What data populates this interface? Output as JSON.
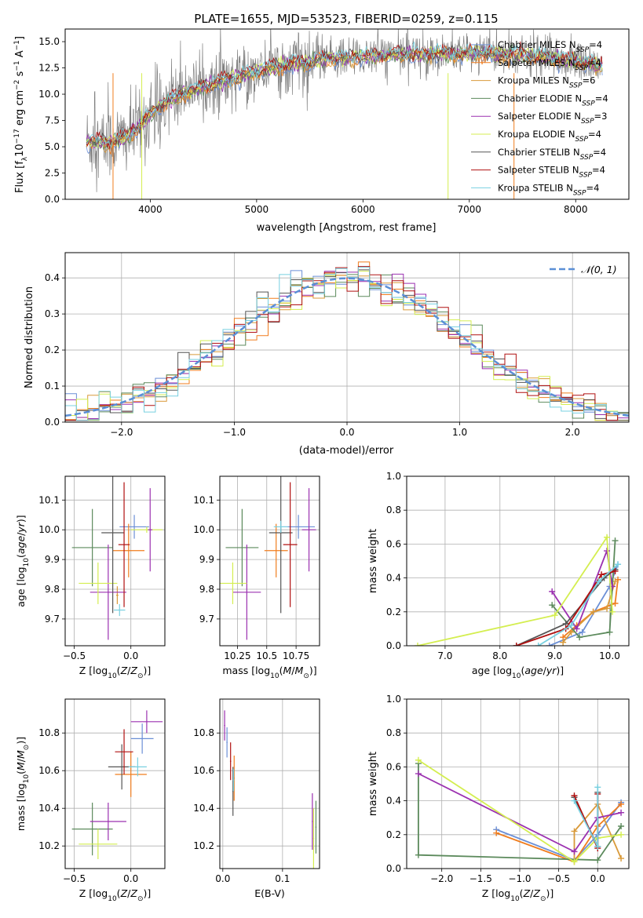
{
  "figure_title": "PLATE=1655, MJD=53523, FIBERID=0259, z=0.115",
  "colors": {
    "Chabrier MILES": "#6b8fd6",
    "Salpeter MILES": "#f07d1e",
    "Kroupa MILES": "#d99a3a",
    "Chabrier ELODIE": "#5c8a5c",
    "Salpeter ELODIE": "#9b30b0",
    "Kroupa ELODIE": "#d4ee50",
    "Chabrier STELIB": "#555555",
    "Salpeter STELIB": "#b01010",
    "Kroupa STELIB": "#78d0e0",
    "data": "#808080",
    "normal": "#5b8fd6"
  },
  "chart_data": [
    {
      "id": "spectrum",
      "type": "line",
      "title": "PLATE=1655, MJD=53523, FIBERID=0259, z=0.115",
      "xlabel": "wavelength [Angstrom, rest frame]",
      "ylabel_parts": [
        "Flux [f",
        "λ",
        "10",
        "−17",
        " erg cm",
        "−2",
        " s",
        "−1",
        " A",
        "−1",
        "]"
      ],
      "xlim": [
        3200,
        8500
      ],
      "ylim": [
        0,
        16.2
      ],
      "xticks": [
        4000,
        5000,
        6000,
        7000,
        8000
      ],
      "yticks": [
        0.0,
        2.5,
        5.0,
        7.5,
        10.0,
        12.5,
        15.0
      ],
      "grid": false,
      "legend_position": "right",
      "legend": [
        {
          "name": "Chabrier MILES",
          "n": "4"
        },
        {
          "name": "Salpeter MILES",
          "n": "4"
        },
        {
          "name": "Kroupa MILES",
          "n": "6"
        },
        {
          "name": "Chabrier ELODIE",
          "n": "4"
        },
        {
          "name": "Salpeter ELODIE",
          "n": "3"
        },
        {
          "name": "Kroupa ELODIE",
          "n": "4"
        },
        {
          "name": "Chabrier STELIB",
          "n": "4"
        },
        {
          "name": "Salpeter STELIB",
          "n": "4"
        },
        {
          "name": "Kroupa STELIB",
          "n": "4"
        }
      ],
      "legend_n_label": "N",
      "legend_n_sub": "SSP",
      "continuum": {
        "x": [
          3400,
          3600,
          3800,
          3950,
          4100,
          4300,
          4600,
          5000,
          5300,
          5600,
          6000,
          6500,
          7000,
          7500,
          8000,
          8250
        ],
        "y": [
          5.5,
          5.3,
          6.0,
          7.5,
          9.0,
          10.0,
          11.0,
          12.2,
          12.8,
          13.3,
          13.6,
          13.8,
          13.9,
          13.7,
          13.2,
          12.6
        ]
      }
    },
    {
      "id": "residuals",
      "type": "histogram",
      "xlabel": "(data-model)/error",
      "ylabel": "Normed distribution",
      "xlim": [
        -2.5,
        2.5
      ],
      "ylim": [
        0,
        0.47
      ],
      "xticks": [
        -2,
        -1,
        0,
        1,
        2
      ],
      "yticks": [
        0.0,
        0.1,
        0.2,
        0.3,
        0.4
      ],
      "grid": true,
      "legend": [
        {
          "name": "𝒩(0, 1)"
        }
      ],
      "legend_position": "top-right",
      "bin_width": 0.1,
      "curve": "normal pdf, mean 0, sigma 1"
    },
    {
      "id": "age-vs-Z",
      "type": "errorbar",
      "xlabel": "Z [log10(Z/Z⊙)]",
      "ylabel": "age  [log10(age/yr)]",
      "xlim": [
        -0.58,
        0.3
      ],
      "ylim": [
        9.61,
        10.18
      ],
      "xticks": [
        -0.5,
        0.0
      ],
      "yticks": [
        9.7,
        9.8,
        9.9,
        10.0,
        10.1
      ],
      "grid": true,
      "points": [
        {
          "model": "Chabrier MILES",
          "x": 0.03,
          "xerr": 0.13,
          "y": 10.01,
          "yerr": 0.04
        },
        {
          "model": "Salpeter MILES",
          "x": -0.02,
          "xerr": 0.14,
          "y": 9.93,
          "yerr": 0.09
        },
        {
          "model": "Kroupa MILES",
          "x": -0.12,
          "xerr": 0.01,
          "y": 9.78,
          "yerr": 0.03
        },
        {
          "model": "Chabrier ELODIE",
          "x": -0.34,
          "xerr": 0.18,
          "y": 9.94,
          "yerr": 0.13
        },
        {
          "model": "Salpeter ELODIE",
          "x": -0.2,
          "xerr": 0.16,
          "y": 9.79,
          "yerr": 0.16
        },
        {
          "model": "Kroupa ELODIE",
          "x": -0.29,
          "xerr": 0.17,
          "y": 9.82,
          "yerr": 0.07
        },
        {
          "model": "Chabrier STELIB",
          "x": -0.16,
          "xerr": 0.1,
          "y": 9.99,
          "yerr": 0.27
        },
        {
          "model": "Salpeter STELIB",
          "x": -0.06,
          "xerr": 0.05,
          "y": 9.95,
          "yerr": 0.21
        },
        {
          "model": "Kroupa STELIB",
          "x": -0.1,
          "xerr": 0.05,
          "y": 9.73,
          "yerr": 0.02
        },
        {
          "model": "Kroupa ELODIE",
          "x": 0.14,
          "xerr": 0.14,
          "y": 10.0,
          "yerr": 0.01
        },
        {
          "model": "Salpeter ELODIE",
          "x": 0.17,
          "xerr": 0.02,
          "y": 10.0,
          "yerr": 0.14
        }
      ]
    },
    {
      "id": "age-vs-mass",
      "type": "errorbar",
      "xlabel": "mass [log10(M/M⊙)]",
      "ylabel": "",
      "xlim": [
        10.1,
        10.95
      ],
      "ylim": [
        9.61,
        10.18
      ],
      "xticks": [
        10.25,
        10.5,
        10.75
      ],
      "yticks": [
        9.7,
        9.8,
        9.9,
        10.0,
        10.1
      ],
      "grid": true,
      "points": [
        {
          "model": "Chabrier MILES",
          "x": 10.77,
          "xerr": 0.14,
          "y": 10.01,
          "yerr": 0.04
        },
        {
          "model": "Salpeter MILES",
          "x": 10.58,
          "xerr": 0.1,
          "y": 9.93,
          "yerr": 0.09
        },
        {
          "model": "Chabrier ELODIE",
          "x": 10.29,
          "xerr": 0.14,
          "y": 9.94,
          "yerr": 0.13
        },
        {
          "model": "Salpeter ELODIE",
          "x": 10.33,
          "xerr": 0.12,
          "y": 9.79,
          "yerr": 0.16
        },
        {
          "model": "Kroupa ELODIE",
          "x": 10.21,
          "xerr": 0.12,
          "y": 9.82,
          "yerr": 0.07
        },
        {
          "model": "Chabrier STELIB",
          "x": 10.62,
          "xerr": 0.1,
          "y": 9.99,
          "yerr": 0.27
        },
        {
          "model": "Salpeter STELIB",
          "x": 10.7,
          "xerr": 0.06,
          "y": 9.95,
          "yerr": 0.21
        },
        {
          "model": "Kroupa STELIB",
          "x": 10.62,
          "xerr": 0.06,
          "y": 10.01,
          "yerr": 0.02
        },
        {
          "model": "Salpeter ELODIE",
          "x": 10.86,
          "xerr": 0.06,
          "y": 10.0,
          "yerr": 0.14
        }
      ]
    },
    {
      "id": "weight-vs-age",
      "type": "line",
      "xlabel": "age  [log10(age/yr)]",
      "ylabel": "mass weight",
      "xlim": [
        6.3,
        10.35
      ],
      "ylim": [
        0,
        1.0
      ],
      "xticks": [
        7,
        8,
        9,
        10
      ],
      "yticks": [
        0.0,
        0.2,
        0.4,
        0.6,
        0.8,
        1.0
      ],
      "grid": true,
      "series": [
        {
          "model": "Chabrier MILES",
          "x": [
            8.9,
            9.5,
            10.0,
            10.15
          ],
          "y": [
            0.0,
            0.08,
            0.35,
            0.48
          ]
        },
        {
          "model": "Salpeter MILES",
          "x": [
            9.15,
            9.4,
            9.7,
            10.1,
            10.15
          ],
          "y": [
            0.05,
            0.12,
            0.2,
            0.25,
            0.39
          ]
        },
        {
          "model": "Kroupa MILES",
          "x": [
            9.15,
            9.3,
            9.7,
            9.95,
            10.1
          ],
          "y": [
            0.02,
            0.08,
            0.2,
            0.22,
            0.38
          ]
        },
        {
          "model": "Chabrier ELODIE",
          "x": [
            8.95,
            9.45,
            10.0,
            10.1
          ],
          "y": [
            0.24,
            0.05,
            0.08,
            0.62
          ]
        },
        {
          "model": "Salpeter ELODIE",
          "x": [
            8.95,
            9.4,
            9.95,
            10.05
          ],
          "y": [
            0.32,
            0.1,
            0.56,
            0.35
          ]
        },
        {
          "model": "Kroupa ELODIE",
          "x": [
            6.5,
            9.0,
            9.95,
            10.05
          ],
          "y": [
            0.0,
            0.18,
            0.64,
            0.2
          ]
        },
        {
          "model": "Chabrier STELIB",
          "x": [
            8.3,
            9.2,
            9.9,
            10.1
          ],
          "y": [
            0.0,
            0.13,
            0.4,
            0.45
          ]
        },
        {
          "model": "Salpeter STELIB",
          "x": [
            8.3,
            9.2,
            9.85,
            10.1
          ],
          "y": [
            0.0,
            0.1,
            0.42,
            0.44
          ]
        },
        {
          "model": "Kroupa STELIB",
          "x": [
            8.7,
            9.3,
            9.8,
            10.15
          ],
          "y": [
            0.0,
            0.12,
            0.38,
            0.48
          ]
        }
      ]
    },
    {
      "id": "mass-vs-Z",
      "type": "errorbar",
      "xlabel": "Z [log10(Z/Z⊙)]",
      "ylabel": "mass [log10(M/M⊙)]",
      "xlim": [
        -0.58,
        0.3
      ],
      "ylim": [
        10.08,
        10.98
      ],
      "xticks": [
        -0.5,
        0.0
      ],
      "yticks": [
        10.2,
        10.4,
        10.6,
        10.8
      ],
      "grid": true,
      "points": [
        {
          "model": "Chabrier MILES",
          "x": 0.1,
          "xerr": 0.1,
          "y": 10.77,
          "yerr": 0.08
        },
        {
          "model": "Salpeter MILES",
          "x": 0.0,
          "xerr": 0.14,
          "y": 10.58,
          "yerr": 0.12
        },
        {
          "model": "Chabrier ELODIE",
          "x": -0.34,
          "xerr": 0.18,
          "y": 10.29,
          "yerr": 0.14
        },
        {
          "model": "Salpeter ELODIE",
          "x": -0.2,
          "xerr": 0.16,
          "y": 10.33,
          "yerr": 0.1
        },
        {
          "model": "Kroupa ELODIE",
          "x": -0.29,
          "xerr": 0.17,
          "y": 10.21,
          "yerr": 0.08
        },
        {
          "model": "Chabrier STELIB",
          "x": -0.08,
          "xerr": 0.12,
          "y": 10.62,
          "yerr": 0.12
        },
        {
          "model": "Salpeter STELIB",
          "x": -0.06,
          "xerr": 0.08,
          "y": 10.7,
          "yerr": 0.12
        },
        {
          "model": "Kroupa STELIB",
          "x": 0.06,
          "xerr": 0.08,
          "y": 10.62,
          "yerr": 0.05
        },
        {
          "model": "Salpeter ELODIE",
          "x": 0.14,
          "xerr": 0.14,
          "y": 10.86,
          "yerr": 0.06
        }
      ]
    },
    {
      "id": "mass-vs-EBV",
      "type": "errorbar",
      "xlabel": "E(B-V)",
      "ylabel": "",
      "xlim": [
        -0.005,
        0.162
      ],
      "ylim": [
        10.08,
        10.98
      ],
      "xticks": [
        0.0,
        0.1
      ],
      "yticks": [
        10.2,
        10.4,
        10.6,
        10.8
      ],
      "grid": true,
      "points": [
        {
          "model": "Salpeter ELODIE",
          "x": 0.003,
          "xerr": 0.001,
          "y": 10.84,
          "yerr": 0.08
        },
        {
          "model": "Chabrier MILES",
          "x": 0.007,
          "xerr": 0.001,
          "y": 10.75,
          "yerr": 0.08
        },
        {
          "model": "Salpeter STELIB",
          "x": 0.013,
          "xerr": 0.001,
          "y": 10.65,
          "yerr": 0.1
        },
        {
          "model": "Chabrier STELIB",
          "x": 0.017,
          "xerr": 0.001,
          "y": 10.49,
          "yerr": 0.13
        },
        {
          "model": "Salpeter MILES",
          "x": 0.019,
          "xerr": 0.001,
          "y": 10.56,
          "yerr": 0.12
        },
        {
          "model": "Kroupa STELIB",
          "x": 0.018,
          "xerr": 0.001,
          "y": 10.55,
          "yerr": 0.06
        },
        {
          "model": "Salpeter ELODIE",
          "x": 0.15,
          "xerr": 0.001,
          "y": 10.33,
          "yerr": 0.15
        },
        {
          "model": "Kroupa ELODIE",
          "x": 0.152,
          "xerr": 0.001,
          "y": 10.24,
          "yerr": 0.16
        },
        {
          "model": "Chabrier ELODIE",
          "x": 0.156,
          "xerr": 0.001,
          "y": 10.3,
          "yerr": 0.14
        }
      ]
    },
    {
      "id": "weight-vs-Z",
      "type": "line",
      "xlabel": "Z [log10(Z/Z⊙)]",
      "ylabel": "mass weight",
      "xlim": [
        -2.45,
        0.4
      ],
      "ylim": [
        0,
        1.0
      ],
      "xticks": [
        -2.0,
        -1.5,
        -1.0,
        -0.5,
        0.0
      ],
      "yticks": [
        0.0,
        0.2,
        0.4,
        0.6,
        0.8,
        1.0
      ],
      "grid": true,
      "series": [
        {
          "model": "Chabrier MILES",
          "x": [
            -1.3,
            -0.3,
            0.0,
            0.3
          ],
          "y": [
            0.23,
            0.05,
            0.2,
            0.39
          ]
        },
        {
          "model": "Salpeter MILES",
          "x": [
            -1.3,
            -0.3,
            0.0,
            0.3
          ],
          "y": [
            0.21,
            0.04,
            0.25,
            0.38
          ]
        },
        {
          "model": "Kroupa MILES",
          "x": [
            -0.3,
            -0.3,
            0.0,
            0.3
          ],
          "y": [
            0.05,
            0.22,
            0.38,
            0.06
          ]
        },
        {
          "model": "Chabrier ELODIE",
          "x": [
            -2.3,
            -2.3,
            0.0,
            0.3
          ],
          "y": [
            0.62,
            0.08,
            0.05,
            0.25
          ]
        },
        {
          "model": "Salpeter ELODIE",
          "x": [
            -2.3,
            -0.3,
            0.0,
            0.3
          ],
          "y": [
            0.56,
            0.1,
            0.3,
            0.33
          ]
        },
        {
          "model": "Kroupa ELODIE",
          "x": [
            -2.3,
            -0.3,
            0.0,
            0.3
          ],
          "y": [
            0.64,
            0.04,
            0.18,
            0.2
          ]
        },
        {
          "model": "Chabrier STELIB",
          "x": [
            -0.3,
            0.0,
            0.0
          ],
          "y": [
            0.42,
            0.13,
            0.45
          ]
        },
        {
          "model": "Salpeter STELIB",
          "x": [
            -0.3,
            0.0,
            0.0
          ],
          "y": [
            0.43,
            0.12,
            0.44
          ]
        },
        {
          "model": "Kroupa STELIB",
          "x": [
            -0.3,
            0.0,
            0.0
          ],
          "y": [
            0.4,
            0.13,
            0.48
          ]
        }
      ]
    }
  ]
}
